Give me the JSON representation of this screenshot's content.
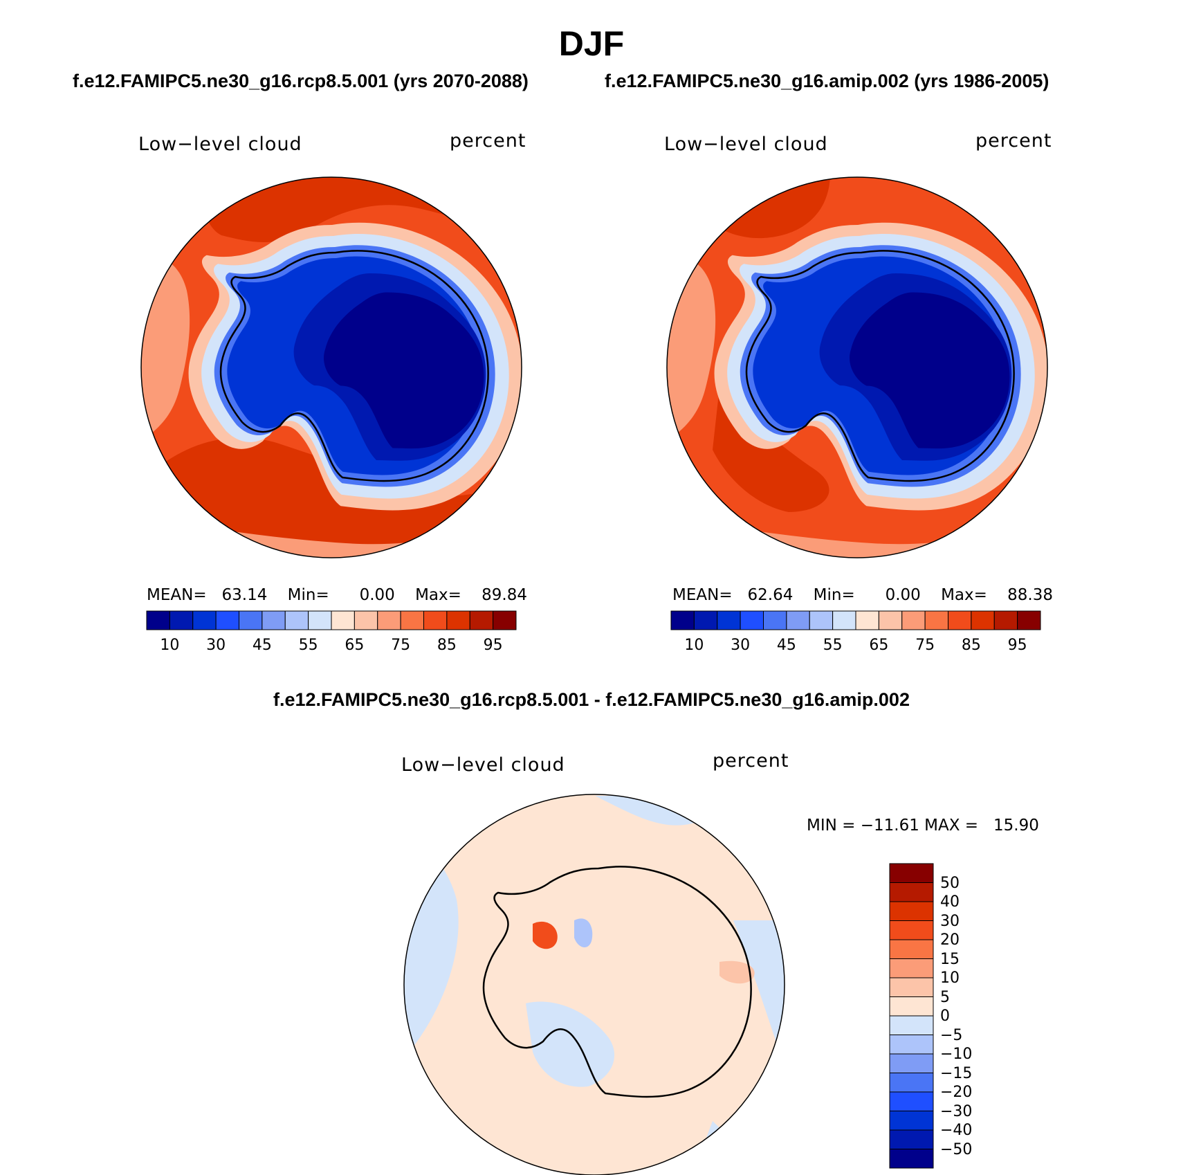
{
  "figure": {
    "title": "DJF",
    "panels": [
      {
        "case_title": "f.e12.FAMIPC5.ne30_g16.rcp8.5.001 (yrs 2070-2088)",
        "variable": "Low−level cloud",
        "units": "percent",
        "stats": {
          "mean_label": "MEAN=",
          "mean": "63.14",
          "min_label": "Min=",
          "min": "0.00",
          "max_label": "Max=",
          "max": "89.84"
        }
      },
      {
        "case_title": "f.e12.FAMIPC5.ne30_g16.amip.002 (yrs 1986-2005)",
        "variable": "Low−level cloud",
        "units": "percent",
        "stats": {
          "mean_label": "MEAN=",
          "mean": "62.64",
          "min_label": "Min=",
          "min": "0.00",
          "max_label": "Max=",
          "max": "88.38"
        }
      }
    ],
    "difference": {
      "title": "f.e12.FAMIPC5.ne30_g16.rcp8.5.001 - f.e12.FAMIPC5.ne30_g16.amip.002",
      "variable": "Low−level cloud",
      "units": "percent",
      "stats_text": "MIN = −11.61 MAX =   15.90"
    }
  },
  "colorbar_abs": {
    "labels": [
      "10",
      "30",
      "45",
      "55",
      "65",
      "75",
      "85",
      "95"
    ],
    "colors": [
      "#00008b",
      "#0019b0",
      "#0034d5",
      "#1f4fff",
      "#4a75f5",
      "#7f9cf5",
      "#adc4fa",
      "#d3e4fa",
      "#fee5d3",
      "#fcc4a9",
      "#fb9c78",
      "#f97544",
      "#f14c1b",
      "#dc3300",
      "#b51a00",
      "#870000"
    ]
  },
  "colorbar_diff": {
    "labels": [
      "50",
      "40",
      "30",
      "20",
      "15",
      "10",
      "5",
      "0",
      "−5",
      "−10",
      "−15",
      "−20",
      "−30",
      "−40",
      "−50"
    ],
    "colors_top_to_bottom": [
      "#870000",
      "#b51a00",
      "#dc3300",
      "#f14c1b",
      "#f97544",
      "#fb9c78",
      "#fcc4a9",
      "#fee5d3",
      "#d3e4fa",
      "#adc4fa",
      "#7f9cf5",
      "#4a75f5",
      "#1f4fff",
      "#0034d5",
      "#0019b0",
      "#00008b"
    ]
  },
  "map_colors": {
    "land_core": "#00008b",
    "land_inner": "#0019b0",
    "land_mid": "#0034d5",
    "land_edge": "#4a75f5",
    "coast_light": "#adc4fa",
    "coast_pale": "#d3e4fa",
    "fringe": "#fee5d3",
    "fringe2": "#fcc4a9",
    "ocean_light": "#fb9c78",
    "ocean_main": "#f14c1b",
    "ocean_dark": "#dc3300",
    "diff_pos": "#fee5d3",
    "diff_pos2": "#fcc4a9",
    "diff_neg": "#d3e4fa",
    "diff_neg2": "#adc4fa"
  }
}
